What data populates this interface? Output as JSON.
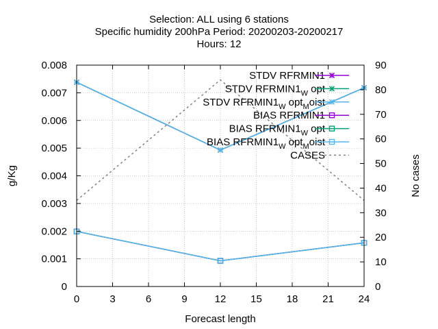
{
  "chart_data": {
    "type": "line",
    "title_lines": [
      "Selection: ALL using     6 stations",
      "Specific humidity 200hPa   Period: 20200203-20200217",
      "Hours:  12"
    ],
    "xlabel": "Forecast length",
    "ylabel": "g/Kg",
    "y2label": "No cases",
    "x_ticks": [
      "0",
      "3",
      "6",
      "9",
      "12",
      "15",
      "18",
      "21",
      "24"
    ],
    "y_ticks": [
      "0",
      "0.001",
      "0.002",
      "0.003",
      "0.004",
      "0.005",
      "0.006",
      "0.007",
      "0.008"
    ],
    "y2_ticks": [
      "0",
      "10",
      "20",
      "30",
      "40",
      "50",
      "60",
      "70",
      "80",
      "90"
    ],
    "xlim": [
      0,
      24
    ],
    "ylim": [
      0,
      0.008
    ],
    "y2lim": [
      0,
      90
    ],
    "grid": true,
    "legend_position": "top-right",
    "x": [
      0,
      12,
      24
    ],
    "series": [
      {
        "name": "STDV RFRMIN1",
        "legend_base": "STDV RFRMIN1",
        "legend_sub": "",
        "legend_tail": "",
        "legend_sub2": "",
        "legend_tail2": "",
        "color": "#9400d3",
        "marker": "x",
        "axis": "y",
        "values": [
          0.00738,
          0.00493,
          0.00718
        ]
      },
      {
        "name": "STDV RFRMIN1_W opt",
        "legend_base": "STDV RFRMIN1",
        "legend_sub": "W",
        "legend_tail": " opt",
        "legend_sub2": "",
        "legend_tail2": "",
        "color": "#009e73",
        "marker": "x",
        "axis": "y",
        "values": [
          0.00738,
          0.00493,
          0.00718
        ]
      },
      {
        "name": "STDV RFRMIN1_W opt_M oist",
        "legend_base": "STDV RFRMIN1",
        "legend_sub": "W",
        "legend_tail": " opt",
        "legend_sub2": "M",
        "legend_tail2": "oist",
        "color": "#56b4e9",
        "marker": "x",
        "axis": "y",
        "values": [
          0.00738,
          0.00493,
          0.00718
        ]
      },
      {
        "name": "BIAS RFRMIN1",
        "legend_base": "BIAS RFRMIN1",
        "legend_sub": "",
        "legend_tail": "",
        "legend_sub2": "",
        "legend_tail2": "",
        "color": "#9400d3",
        "marker": "square",
        "axis": "y",
        "values": [
          0.00199,
          0.00093,
          0.00158
        ]
      },
      {
        "name": "BIAS RFRMIN1_W opt",
        "legend_base": "BIAS RFRMIN1",
        "legend_sub": "W",
        "legend_tail": " opt",
        "legend_sub2": "",
        "legend_tail2": "",
        "color": "#009e73",
        "marker": "square",
        "axis": "y",
        "values": [
          0.00199,
          0.00093,
          0.00158
        ]
      },
      {
        "name": "BIAS RFRMIN1_W opt_M oist",
        "legend_base": "BIAS RFRMIN1",
        "legend_sub": "W",
        "legend_tail": " opt",
        "legend_sub2": "M",
        "legend_tail2": "oist",
        "color": "#56b4e9",
        "marker": "square",
        "axis": "y",
        "values": [
          0.00199,
          0.00093,
          0.00158
        ]
      },
      {
        "name": "CASES",
        "legend_base": "CASES",
        "legend_sub": "",
        "legend_tail": "",
        "legend_sub2": "",
        "legend_tail2": "",
        "color": "#808080",
        "marker": "none",
        "dashed": true,
        "axis": "y2",
        "values": [
          35,
          84,
          35
        ]
      }
    ]
  }
}
